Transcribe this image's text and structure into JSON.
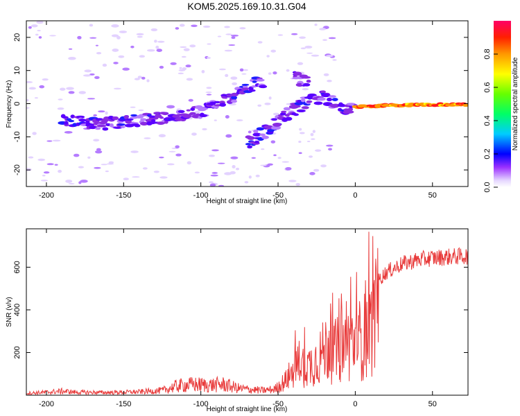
{
  "title": "KOM5.2025.169.10.31.G04",
  "chart_data": [
    {
      "type": "heatmap",
      "xlabel": "Height of straight line (km)",
      "ylabel": "Frequency (Hz)",
      "xlim": [
        -213,
        73
      ],
      "ylim": [
        -25,
        25
      ],
      "xticks": [
        -200,
        -150,
        -100,
        -50,
        0,
        50
      ],
      "yticks": [
        -20,
        -10,
        0,
        10,
        20
      ],
      "colorbar": {
        "label": "Normalized spectral amplitude",
        "range": [
          0,
          1
        ],
        "ticks": [
          "0.0",
          "0.2",
          "0.4",
          "0.6",
          "0.8"
        ],
        "tick_values": [
          0.0,
          0.2,
          0.4,
          0.6,
          0.8
        ]
      },
      "features": [
        {
          "name": "main-trace",
          "points": [
            [
              -190,
              -5
            ],
            [
              -160,
              -6
            ],
            [
              -140,
              -5
            ],
            [
              -120,
              -4
            ],
            [
              -100,
              -2.5
            ],
            [
              -90,
              0
            ],
            [
              -80,
              2
            ],
            [
              -70,
              5
            ],
            [
              -60,
              7
            ]
          ],
          "amplitude": 0.2
        },
        {
          "name": "second-trace",
          "points": [
            [
              -70,
              -12
            ],
            [
              -60,
              -9
            ],
            [
              -50,
              -5
            ],
            [
              -40,
              -2
            ],
            [
              -30,
              1
            ],
            [
              -20,
              2
            ],
            [
              -10,
              -1
            ],
            [
              0,
              -2
            ]
          ],
          "amplitude": 0.2
        },
        {
          "name": "upper-patch",
          "points": [
            [
              -40,
              8
            ],
            [
              -30,
              6
            ]
          ],
          "amplitude": 0.15
        },
        {
          "name": "dc-line",
          "points": [
            [
              0,
              -1
            ],
            [
              20,
              -0.5
            ],
            [
              50,
              -0.3
            ],
            [
              73,
              -0.3
            ]
          ],
          "amplitude": 0.9
        }
      ],
      "grid": false,
      "legend": "none"
    },
    {
      "type": "line",
      "xlabel": "Height of straight line (km)",
      "ylabel": "SNR (v/v)",
      "xlim": [
        -213,
        73
      ],
      "ylim": [
        0,
        780
      ],
      "xticks": [
        -200,
        -150,
        -100,
        -50,
        0,
        50
      ],
      "yticks": [
        200,
        400,
        600
      ],
      "color": "#e83a3a",
      "envelope": [
        {
          "x": -213,
          "y": 15
        },
        {
          "x": -200,
          "y": 22
        },
        {
          "x": -190,
          "y": 30
        },
        {
          "x": -180,
          "y": 22
        },
        {
          "x": -160,
          "y": 20
        },
        {
          "x": -140,
          "y": 25
        },
        {
          "x": -125,
          "y": 35
        },
        {
          "x": -115,
          "y": 70
        },
        {
          "x": -105,
          "y": 80
        },
        {
          "x": -95,
          "y": 75
        },
        {
          "x": -85,
          "y": 80
        },
        {
          "x": -75,
          "y": 50
        },
        {
          "x": -60,
          "y": 35
        },
        {
          "x": -52,
          "y": 45
        },
        {
          "x": -45,
          "y": 110
        },
        {
          "x": -40,
          "y": 190
        },
        {
          "x": -35,
          "y": 230
        },
        {
          "x": -30,
          "y": 220
        },
        {
          "x": -25,
          "y": 270
        },
        {
          "x": -20,
          "y": 330
        },
        {
          "x": -17,
          "y": 390
        },
        {
          "x": -15,
          "y": 310
        },
        {
          "x": -10,
          "y": 350
        },
        {
          "x": -5,
          "y": 380
        },
        {
          "x": 0,
          "y": 400
        },
        {
          "x": 5,
          "y": 430
        },
        {
          "x": 10,
          "y": 500
        },
        {
          "x": 15,
          "y": 560
        },
        {
          "x": 20,
          "y": 600
        },
        {
          "x": 30,
          "y": 640
        },
        {
          "x": 40,
          "y": 660
        },
        {
          "x": 50,
          "y": 670
        },
        {
          "x": 60,
          "y": 675
        },
        {
          "x": 73,
          "y": 680
        }
      ],
      "grid": false,
      "legend": "none"
    }
  ]
}
